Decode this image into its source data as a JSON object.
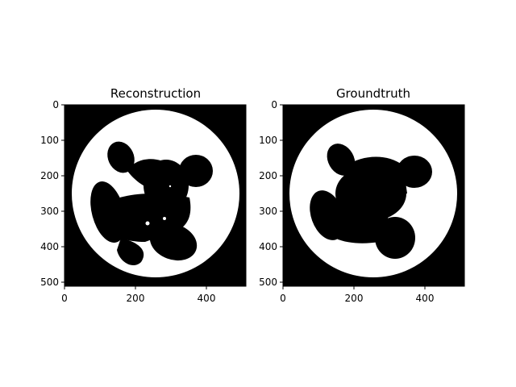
{
  "figure": {
    "panels": [
      {
        "title": "Reconstruction",
        "xticks": [
          "0",
          "200",
          "400"
        ],
        "yticks": [
          "0",
          "100",
          "200",
          "300",
          "400",
          "500"
        ]
      },
      {
        "title": "Groundtruth",
        "xticks": [
          "0",
          "200",
          "400"
        ],
        "yticks": [
          "0",
          "100",
          "200",
          "300",
          "400",
          "500"
        ]
      }
    ],
    "image_size": [
      512,
      512
    ],
    "colors": {
      "background": "#000000",
      "disk": "#ffffff",
      "blob": "#000000"
    }
  }
}
